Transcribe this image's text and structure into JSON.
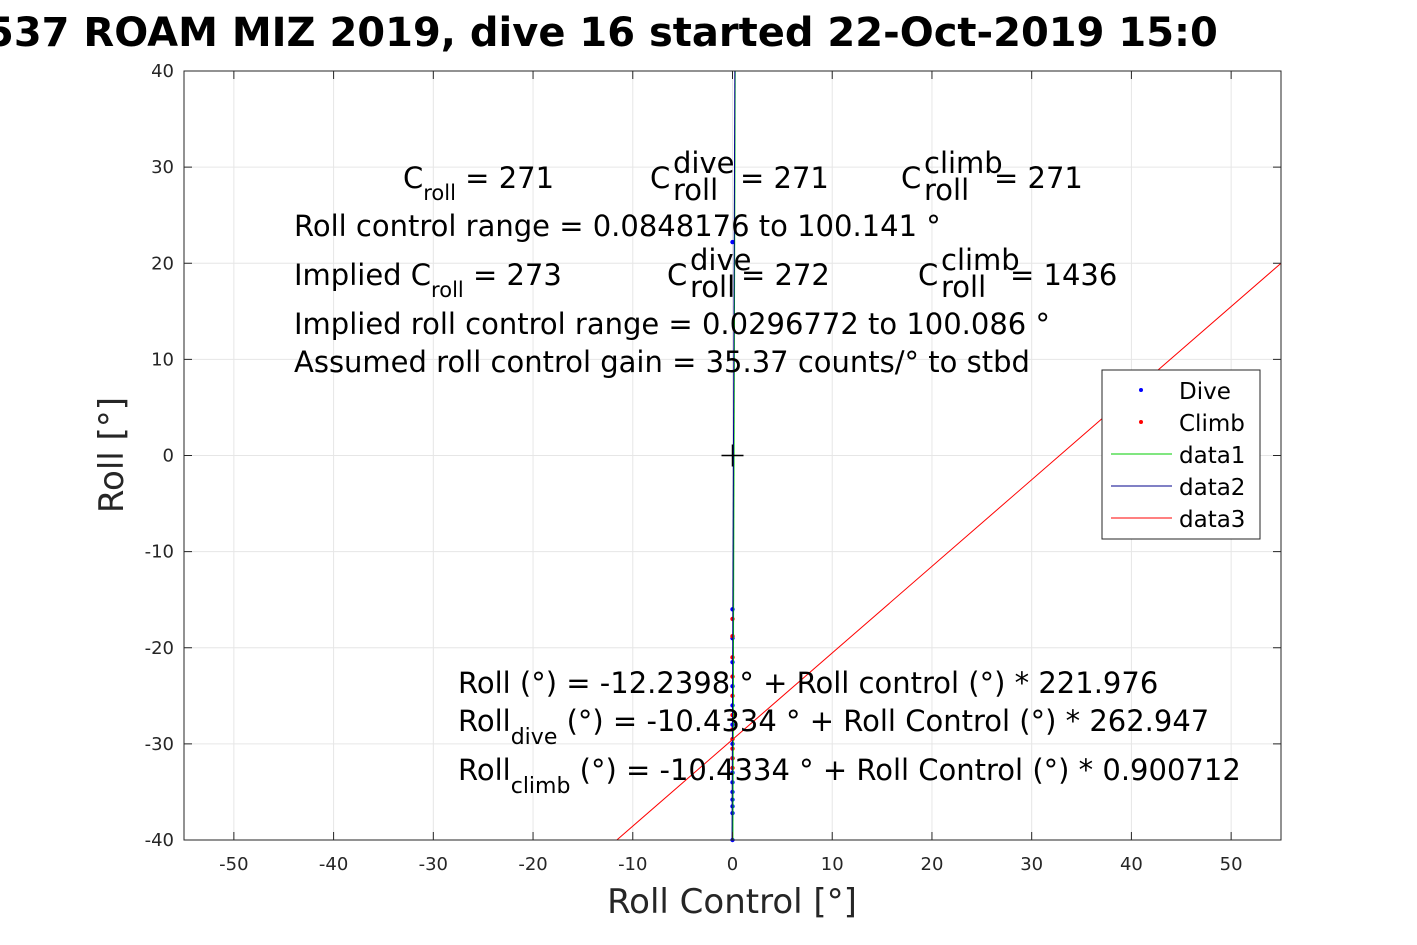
{
  "chart_data": {
    "type": "scatter",
    "title": "537 ROAM MIZ 2019, dive 16 started 22-Oct-2019 15:0",
    "xlabel": "Roll Control [°]",
    "ylabel": "Roll [°]",
    "xlim": [
      -55,
      55
    ],
    "ylim": [
      -40,
      40
    ],
    "x_ticks": [
      -50,
      -40,
      -30,
      -20,
      -10,
      0,
      10,
      20,
      30,
      40,
      50
    ],
    "y_ticks": [
      -40,
      -30,
      -20,
      -10,
      0,
      10,
      20,
      30,
      40
    ],
    "grid": true,
    "legend_position": "right",
    "legend": [
      "Dive",
      "Climb",
      "data1",
      "data2",
      "data3"
    ],
    "colors": {
      "dive": "#0000ff",
      "climb": "#ff0000",
      "data1": "#00cc00",
      "data2": "#00008b",
      "data3": "#ff0000",
      "grid": "#e6e6e6",
      "axis": "#262626"
    },
    "series": [
      {
        "name": "Dive",
        "marker": "dot",
        "points": [
          [
            0.0,
            22.2
          ],
          [
            0.0,
            -16.0
          ],
          [
            0.0,
            -19.0
          ],
          [
            0.0,
            -21.5
          ],
          [
            0.0,
            -24.0
          ],
          [
            0.0,
            -26.0
          ],
          [
            0.0,
            -28.0
          ],
          [
            0.0,
            -30.0
          ],
          [
            0.0,
            -31.5
          ],
          [
            0.0,
            -33.0
          ],
          [
            0.0,
            -34.0
          ],
          [
            0.0,
            -35.0
          ],
          [
            0.0,
            -35.8
          ],
          [
            0.0,
            -36.5
          ],
          [
            0.0,
            -37.2
          ],
          [
            0.0,
            -40.0
          ]
        ]
      },
      {
        "name": "Climb",
        "marker": "dot",
        "points": [
          [
            0.0,
            -17.0
          ],
          [
            0.0,
            -18.8
          ],
          [
            0.0,
            -21.0
          ],
          [
            0.0,
            -23.0
          ],
          [
            0.0,
            -25.0
          ],
          [
            0.0,
            -27.0
          ],
          [
            0.0,
            -28.5
          ],
          [
            0.0,
            -29.5
          ],
          [
            0.0,
            -30.5
          ],
          [
            0.0,
            -31.5
          ],
          [
            0.0,
            -32.5
          ]
        ]
      },
      {
        "name": "data1",
        "type": "line",
        "points": [
          [
            0.04,
            -40
          ],
          [
            0.27,
            40
          ]
        ]
      },
      {
        "name": "data2",
        "type": "line",
        "points": [
          [
            -0.047,
            -40
          ],
          [
            0.235,
            40
          ]
        ]
      },
      {
        "name": "data3",
        "type": "line",
        "points": [
          [
            -11.6,
            -40
          ],
          [
            55,
            20
          ]
        ]
      }
    ],
    "center_marker": [
      0,
      0
    ],
    "annotations": {
      "c_roll": {
        "base": "C",
        "sub": "roll",
        "value": " =  271"
      },
      "c_roll_dive": {
        "base": "C",
        "sub": "roll",
        "sup": "dive",
        "value": " =  271"
      },
      "c_roll_climb": {
        "base": "C",
        "sub": "roll",
        "sup": "climb",
        "value": " =  271"
      },
      "roll_range": "Roll control range = 0.0848176 to 100.141 °",
      "implied_label": "Implied ",
      "implied_c_roll": {
        "base": "C",
        "sub": "roll",
        "value": " =  273"
      },
      "implied_c_roll_dive": {
        "base": "C",
        "sub": "roll",
        "sup": "dive",
        "value": " =  272"
      },
      "implied_c_roll_climb": {
        "base": "C",
        "sub": "roll",
        "sup": "climb",
        "value": " = 1436"
      },
      "implied_range": "Implied roll control range = 0.0296772 to 100.086 °",
      "assumed_gain": "Assumed roll control gain = 35.37 counts/° to stbd",
      "fit_all": "Roll (°) = -12.2398 ° + Roll control (°) * 221.976",
      "fit_dive": {
        "base": "Roll",
        "sub": "dive",
        "value": " (°) = -10.4334 ° + Roll Control (°) * 262.947"
      },
      "fit_climb": {
        "base": "Roll",
        "sub": "climb",
        "value": " (°) = -10.4334 ° + Roll Control (°) * 0.900712"
      }
    }
  }
}
